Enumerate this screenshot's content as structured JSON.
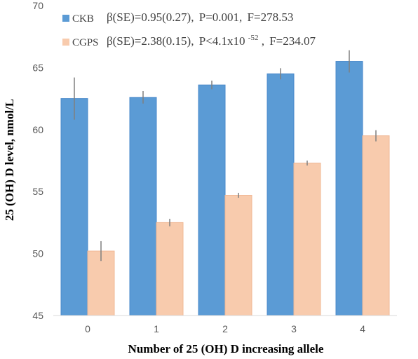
{
  "chart_data": {
    "type": "bar",
    "title": "",
    "xlabel": "Number of 25 (OH) D increasing allele",
    "ylabel": "25 (OH) D level, nmol/L",
    "categories": [
      "0",
      "1",
      "2",
      "3",
      "4"
    ],
    "ylim": [
      45,
      70
    ],
    "yticks": [
      "45",
      "50",
      "55",
      "60",
      "65",
      "70"
    ],
    "grid": false,
    "legend_position": "top-left",
    "series": [
      {
        "name": "CKB",
        "color": "#5B9BD5",
        "values": [
          62.5,
          62.6,
          63.6,
          64.5,
          65.5
        ],
        "errors": [
          1.7,
          0.5,
          0.35,
          0.45,
          0.9
        ],
        "stats": {
          "beta": "β(SE)=0.95(0.27),",
          "p": "P=0.001,",
          "f": "F=278.53"
        }
      },
      {
        "name": "CGPS",
        "color": "#F8CBAD",
        "values": [
          50.2,
          52.5,
          54.7,
          57.3,
          59.5
        ],
        "errors": [
          0.8,
          0.3,
          0.2,
          0.2,
          0.45
        ],
        "stats": {
          "beta": "β(SE)=2.38(0.15),",
          "p_prefix": "P<4.1x10",
          "p_exp": "-52",
          "p_suffix": ",",
          "f": "F=234.07"
        }
      }
    ]
  }
}
